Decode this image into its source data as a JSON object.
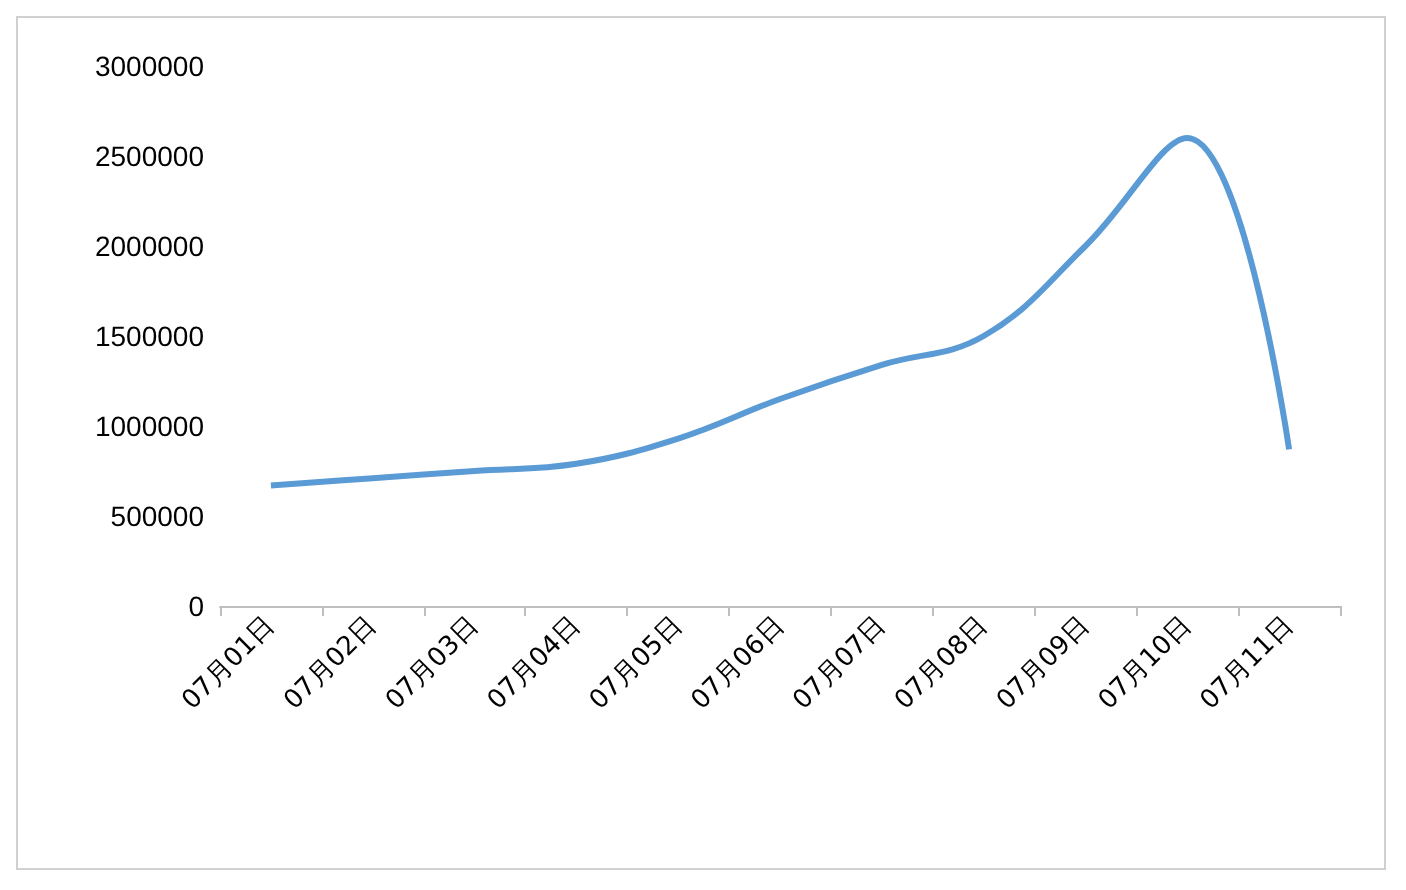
{
  "chart_data": {
    "type": "line",
    "categories": [
      "07月01日",
      "07月02日",
      "07月03日",
      "07月04日",
      "07月05日",
      "07月06日",
      "07月07日",
      "07月08日",
      "07月09日",
      "07月10日",
      "07月11日"
    ],
    "series": [
      {
        "color": "#5b9bd5",
        "values": [
          670000,
          710000,
          750000,
          790000,
          930000,
          1150000,
          1340000,
          1500000,
          2000000,
          2600000,
          870000
        ]
      }
    ],
    "ylim": [
      0,
      3000000
    ],
    "yticks": [
      0,
      500000,
      1000000,
      1500000,
      2000000,
      2500000,
      3000000
    ],
    "grid": false,
    "marker": "none",
    "line_style": "solid"
  }
}
